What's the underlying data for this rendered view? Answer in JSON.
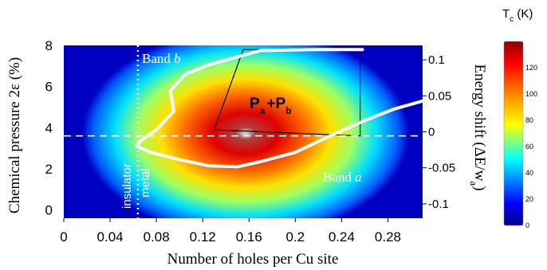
{
  "chart_data": {
    "type": "heatmap",
    "title": "",
    "xlabel": "Number of holes per Cu site",
    "ylabel_left": "Chemical pressure  2ε (%)",
    "ylabel_right": "Energy shift (ΔE/w",
    "ylabel_right_sub": "a",
    "ylabel_right_close": ")",
    "xlim": [
      0,
      0.31
    ],
    "ylim_left": [
      -0.4,
      8
    ],
    "ylim_right": [
      -0.12,
      0.12
    ],
    "x_ticks": [
      {
        "value": 0,
        "label": "0"
      },
      {
        "value": 0.04,
        "label": "0.04"
      },
      {
        "value": 0.08,
        "label": "0.08"
      },
      {
        "value": 0.12,
        "label": "0.12"
      },
      {
        "value": 0.16,
        "label": "0.16"
      },
      {
        "value": 0.2,
        "label": "0.2"
      },
      {
        "value": 0.24,
        "label": "0.24"
      },
      {
        "value": 0.28,
        "label": "0.28"
      }
    ],
    "y_ticks_left": [
      {
        "value": 0,
        "label": "0"
      },
      {
        "value": 2,
        "label": "2"
      },
      {
        "value": 4,
        "label": "4"
      },
      {
        "value": 6,
        "label": "6"
      },
      {
        "value": 8,
        "label": "8"
      }
    ],
    "y_ticks_right": [
      {
        "value": 0.1,
        "label": "0.1"
      },
      {
        "value": 0.05,
        "label": "0.05"
      },
      {
        "value": 0,
        "label": "0"
      },
      {
        "value": -0.05,
        "label": "-0.05"
      },
      {
        "value": -0.1,
        "label": "-0.1"
      }
    ],
    "heatmap_peak": {
      "x": 0.155,
      "y": 3.8,
      "tc": 135
    },
    "colorbar": {
      "label": "T",
      "label_sub": "c",
      "label_unit": " (K)",
      "min": 0,
      "max": 140,
      "ticks": [
        {
          "value": 0,
          "label": "0"
        },
        {
          "value": 20,
          "label": "20"
        },
        {
          "value": 40,
          "label": "40"
        },
        {
          "value": 60,
          "label": "60"
        },
        {
          "value": 80,
          "label": "80"
        },
        {
          "value": 100,
          "label": "100"
        },
        {
          "value": 120,
          "label": "120"
        }
      ]
    },
    "reference_lines": {
      "vertical_dotted_x": 0.064,
      "horizontal_dashed_y": 3.6
    },
    "band_curve": [
      [
        0.258,
        7.8
      ],
      [
        0.22,
        7.8
      ],
      [
        0.17,
        7.75
      ],
      [
        0.125,
        7.05
      ],
      [
        0.105,
        6.6
      ],
      [
        0.092,
        5.8
      ],
      [
        0.095,
        4.8
      ],
      [
        0.08,
        3.9
      ],
      [
        0.066,
        3.35
      ],
      [
        0.063,
        3.1
      ],
      [
        0.075,
        2.8
      ],
      [
        0.1,
        2.45
      ],
      [
        0.125,
        2.15
      ],
      [
        0.15,
        2.1
      ],
      [
        0.17,
        2.35
      ],
      [
        0.2,
        2.8
      ],
      [
        0.23,
        3.6
      ],
      [
        0.26,
        4.35
      ],
      [
        0.285,
        4.9
      ],
      [
        0.31,
        5.3
      ]
    ],
    "quadrilateral": [
      [
        0.13,
        3.9
      ],
      [
        0.155,
        7.8
      ],
      [
        0.256,
        7.8
      ],
      [
        0.256,
        3.6
      ]
    ],
    "annotations": {
      "band_b": "Band ",
      "band_b_var": "b",
      "band_a": "Band ",
      "band_a_var": "a",
      "p_label_1": "P",
      "p_sub_1": "a",
      "p_plus": "+P",
      "p_sub_2": "b",
      "insulator": "insulator",
      "metal": "metal"
    }
  }
}
